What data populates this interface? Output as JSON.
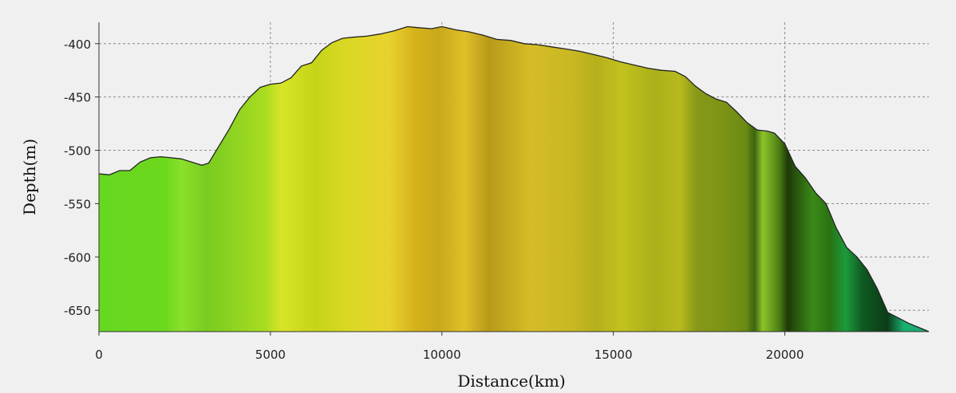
{
  "chart_data": {
    "type": "area",
    "title": "",
    "xlabel": "Distance(km)",
    "ylabel": "Depth(m)",
    "xlim": [
      0,
      24200
    ],
    "ylim": [
      -670,
      -380
    ],
    "x_ticks": [
      0,
      5000,
      10000,
      15000,
      20000
    ],
    "y_ticks": [
      -400,
      -450,
      -500,
      -550,
      -600,
      -650
    ],
    "grid": true,
    "colors": {
      "background": "#f0f0f0",
      "outline": "#222222",
      "fill_low": "#6bdc20",
      "fill_mid": "#e8c830",
      "fill_peak": "#d4a818",
      "fill_dark": "#2d6a10",
      "fill_edge": "#1aa868"
    },
    "series": [
      {
        "x": [
          0,
          300,
          600,
          900,
          1200,
          1500,
          1800,
          2100,
          2400,
          2700,
          3000,
          3200,
          3500,
          3800,
          4100,
          4400,
          4700,
          5000,
          5300,
          5600,
          5900,
          6200,
          6500,
          6800,
          7100,
          7400,
          7800,
          8200,
          8600,
          9000,
          9300,
          9700,
          10000,
          10400,
          10800,
          11200,
          11600,
          12000,
          12400,
          12800,
          13200,
          13600,
          14000,
          14400,
          14800,
          15200,
          15600,
          16000,
          16400,
          16800,
          17100,
          17400,
          17700,
          18000,
          18300,
          18600,
          18900,
          19200,
          19500,
          19700,
          20000,
          20300,
          20600,
          20900,
          21200,
          21500,
          21800,
          22100,
          22400,
          22700,
          23000,
          23300,
          23600,
          23900,
          24200
        ],
        "y": [
          -522,
          -523,
          -519,
          -519,
          -511,
          -507,
          -506,
          -507,
          -508,
          -511,
          -514,
          -512,
          -496,
          -480,
          -462,
          -450,
          -441,
          -438,
          -437,
          -432,
          -421,
          -418,
          -406,
          -399,
          -395,
          -394,
          -393,
          -391,
          -388,
          -384,
          -385,
          -386,
          -384,
          -387,
          -389,
          -392,
          -396,
          -397,
          -400,
          -401,
          -403,
          -405,
          -407,
          -410,
          -413,
          -417,
          -420,
          -423,
          -425,
          -426,
          -431,
          -440,
          -447,
          -452,
          -455,
          -464,
          -474,
          -481,
          -482,
          -484,
          -494,
          -515,
          -526,
          -540,
          -550,
          -573,
          -591,
          -600,
          -612,
          -630,
          -652,
          -657,
          -662,
          -666,
          -670
        ]
      }
    ]
  }
}
